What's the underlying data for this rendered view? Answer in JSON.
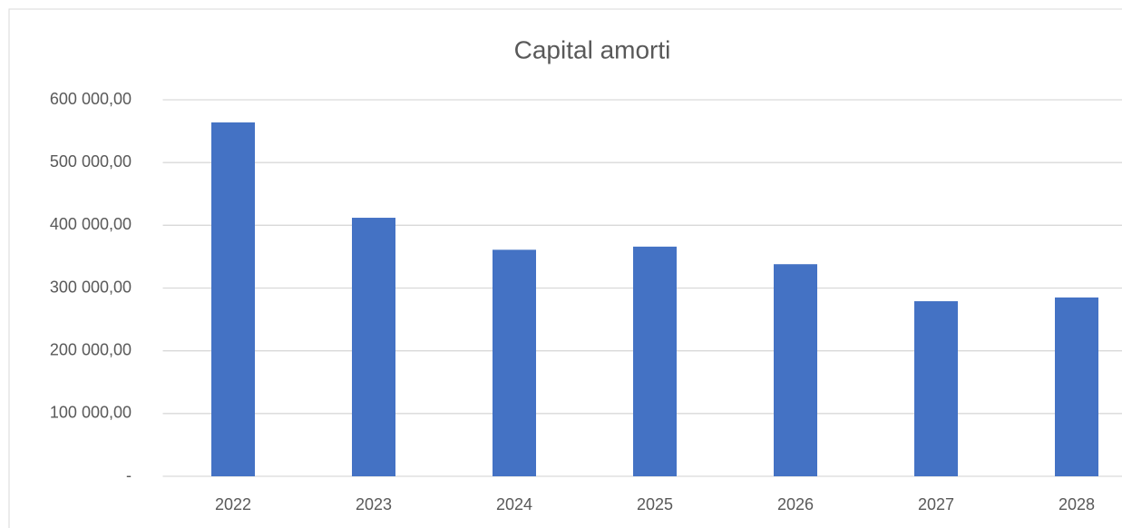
{
  "chart_data": {
    "type": "bar",
    "title": "Capital amorti",
    "categories": [
      "2022",
      "2023",
      "2024",
      "2025",
      "2026",
      "2027",
      "2028"
    ],
    "values": [
      564000,
      412000,
      361000,
      366000,
      338000,
      279000,
      285000
    ],
    "color": "#4472c4",
    "ylim": [
      0,
      600000
    ],
    "yticks": [
      {
        "value": 0,
        "label": "-"
      },
      {
        "value": 100000,
        "label": "100 000,00"
      },
      {
        "value": 200000,
        "label": "200 000,00"
      },
      {
        "value": 300000,
        "label": "300 000,00"
      },
      {
        "value": 400000,
        "label": "400 000,00"
      },
      {
        "value": 500000,
        "label": "500 000,00"
      },
      {
        "value": 600000,
        "label": "600 000,00"
      }
    ],
    "grid": true
  }
}
